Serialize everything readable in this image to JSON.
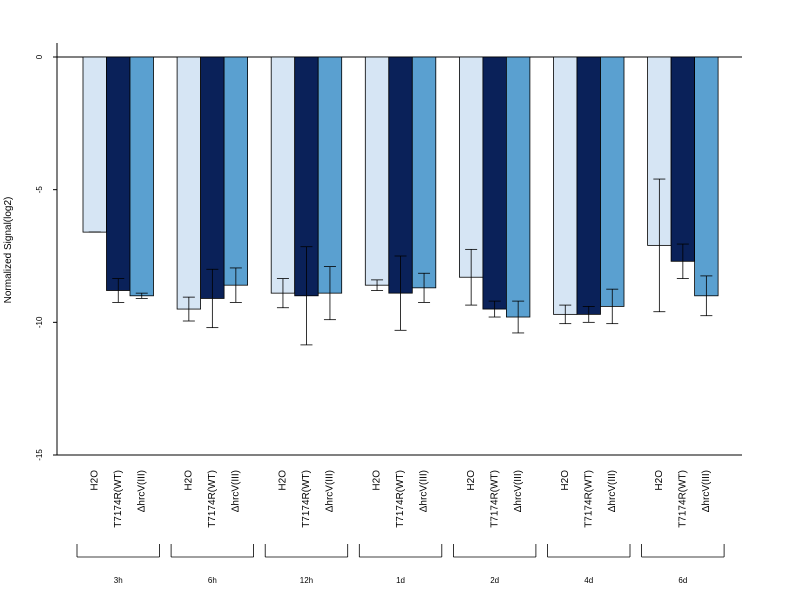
{
  "chart_data": {
    "type": "bar",
    "title": "",
    "xlabel": "",
    "ylabel": "Normalized Signal(log2)",
    "ylim": [
      -15,
      0.5
    ],
    "yticks": [
      0,
      -5,
      -10,
      -15
    ],
    "grid": false,
    "legend": "none",
    "groups": [
      "3h",
      "6h",
      "12h",
      "1d",
      "2d",
      "4d",
      "6d"
    ],
    "series": [
      {
        "name": "H2O",
        "color": "#d6e5f4",
        "values": [
          -6.6,
          -9.5,
          -8.9,
          -8.6,
          -8.3,
          -9.7,
          -7.1
        ],
        "error": [
          0.0,
          0.45,
          0.55,
          0.2,
          1.05,
          0.35,
          2.5
        ]
      },
      {
        "name": "T7174R(WT)",
        "color": "#0a2159",
        "values": [
          -8.8,
          -9.1,
          -9.0,
          -8.9,
          -9.5,
          -9.7,
          -7.7
        ],
        "error": [
          0.45,
          1.1,
          1.85,
          1.4,
          0.3,
          0.3,
          0.65
        ]
      },
      {
        "name": "ΔhrcV(III)",
        "color": "#5aa0d0",
        "values": [
          -9.0,
          -8.6,
          -8.9,
          -8.7,
          -9.8,
          -9.4,
          -9.0
        ],
        "error": [
          0.1,
          0.65,
          1.0,
          0.55,
          0.6,
          0.65,
          0.75
        ]
      }
    ],
    "category_labels": [
      "H2O",
      "T7174R(WT)",
      "ΔhrcV(III)"
    ]
  }
}
